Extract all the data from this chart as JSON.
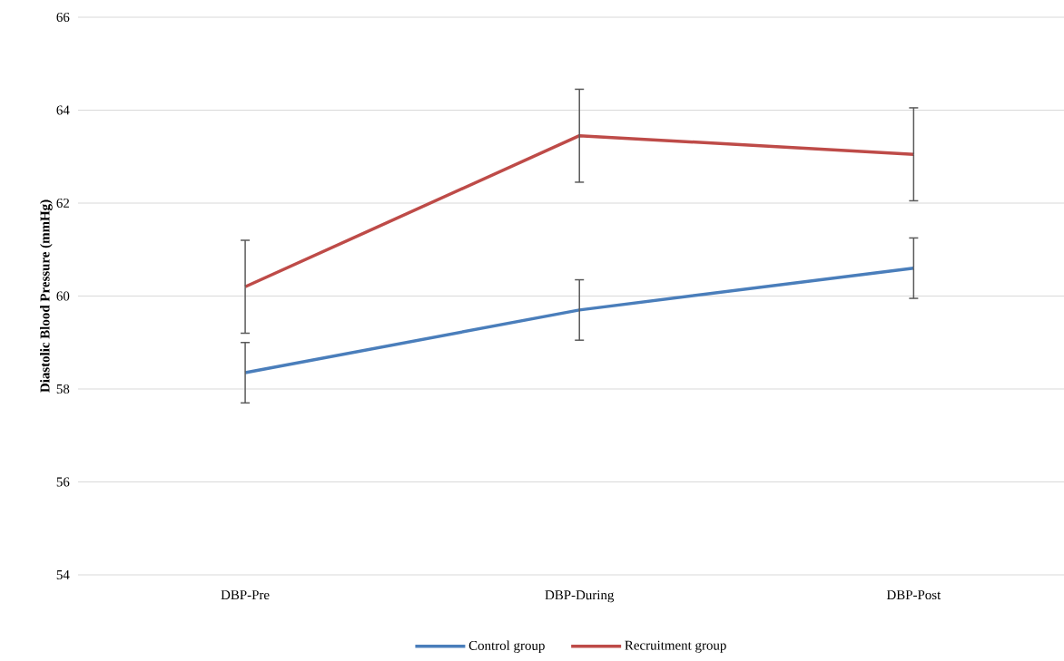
{
  "chart_data": {
    "type": "line",
    "ylabel": "Diastolic Blood Pressure (mmHg)",
    "categories": [
      "DBP-Pre",
      "DBP-During",
      "DBP-Post"
    ],
    "series": [
      {
        "name": "Control group",
        "color": "#4a7ebb",
        "values": [
          58.35,
          59.7,
          60.6
        ],
        "errors": [
          0.65,
          0.65,
          0.65
        ]
      },
      {
        "name": "Recruitment group",
        "color": "#be4b48",
        "values": [
          60.2,
          63.45,
          63.05
        ],
        "errors": [
          1.0,
          1.0,
          1.0
        ]
      }
    ],
    "ylim": [
      54,
      66
    ],
    "yticks": [
      54,
      56,
      58,
      60,
      62,
      64,
      66
    ],
    "grid": "y",
    "legend": "bottom"
  }
}
